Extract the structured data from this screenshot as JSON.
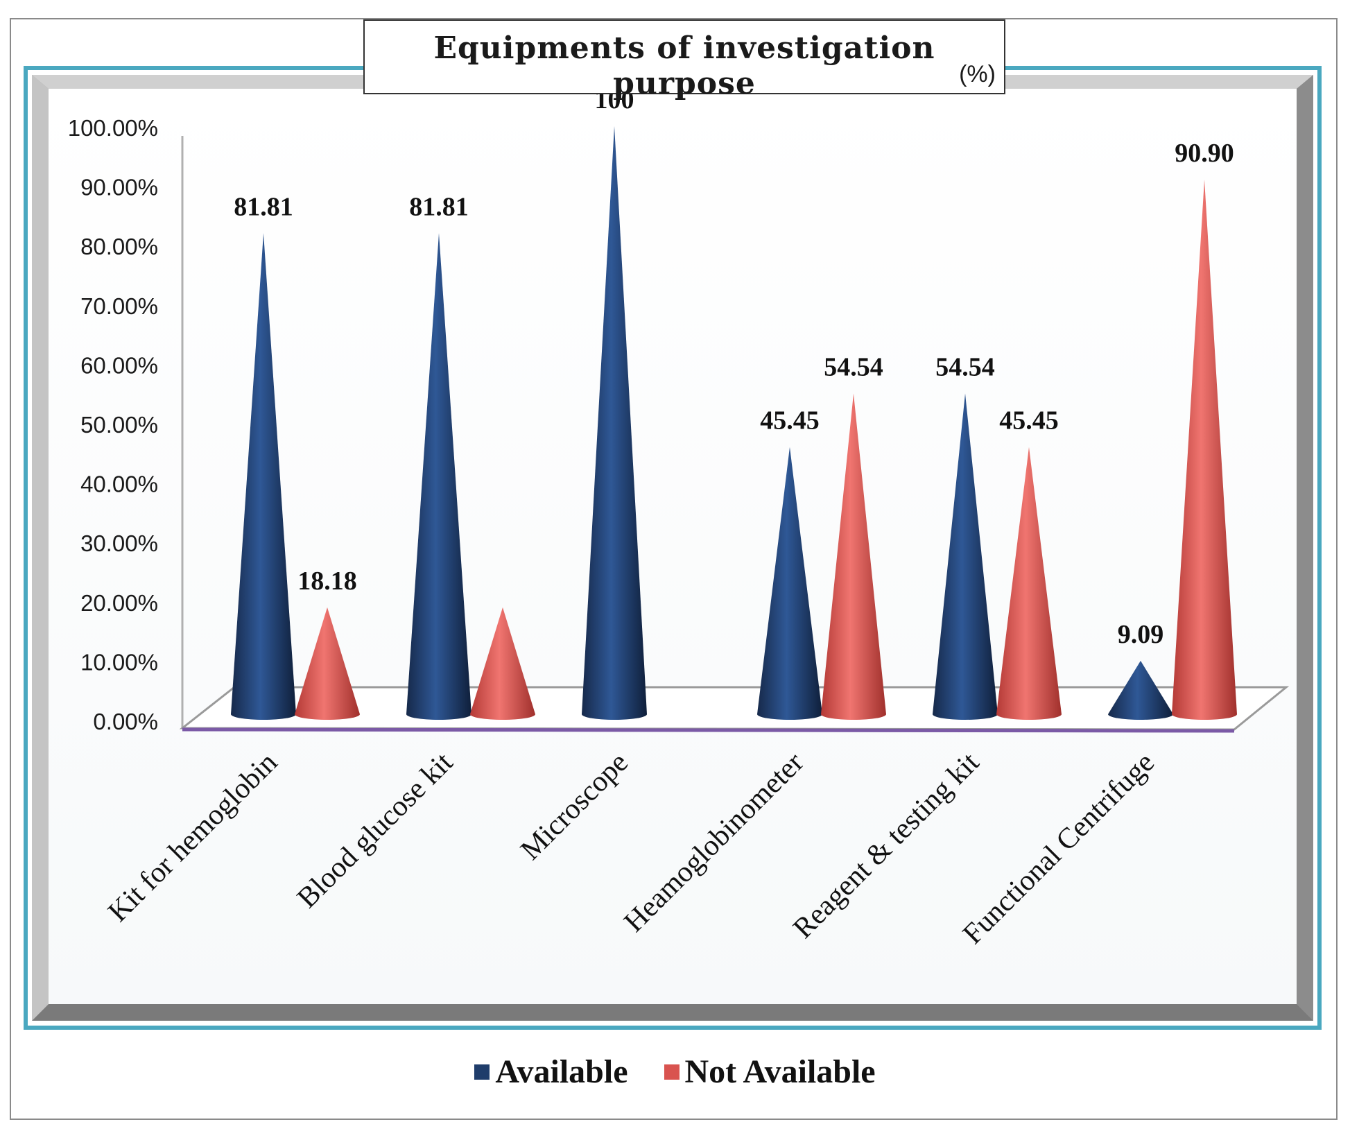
{
  "chart_data": {
    "type": "bar",
    "title": "Equipments of investigation purpose",
    "unit_label": "(%)",
    "categories": [
      "Kit for hemoglobin",
      "Blood glucose kit",
      "Microscope",
      "Heamoglobinometer",
      "Reagent & testing kit",
      "Functional Centrifuge"
    ],
    "series": [
      {
        "name": "Available",
        "color": "#1f3d6b",
        "values": [
          81.81,
          81.81,
          100,
          45.45,
          54.54,
          9.09
        ],
        "labels": [
          "81.81",
          "81.81",
          "100",
          "45.45",
          "54.54",
          "9.09"
        ]
      },
      {
        "name": "Not Available",
        "color": "#d9534f",
        "values": [
          18.18,
          18.18,
          null,
          54.54,
          45.45,
          90.9
        ],
        "labels": [
          "18.18",
          "",
          "",
          "54.54",
          "45.45",
          "90.90"
        ]
      }
    ],
    "ylim": [
      0,
      100
    ],
    "yticks": [
      "0.00%",
      "10.00%",
      "20.00%",
      "30.00%",
      "40.00%",
      "50.00%",
      "60.00%",
      "70.00%",
      "80.00%",
      "90.00%",
      "100.00%"
    ],
    "mark_shape": "cone",
    "legend_position": "bottom"
  }
}
